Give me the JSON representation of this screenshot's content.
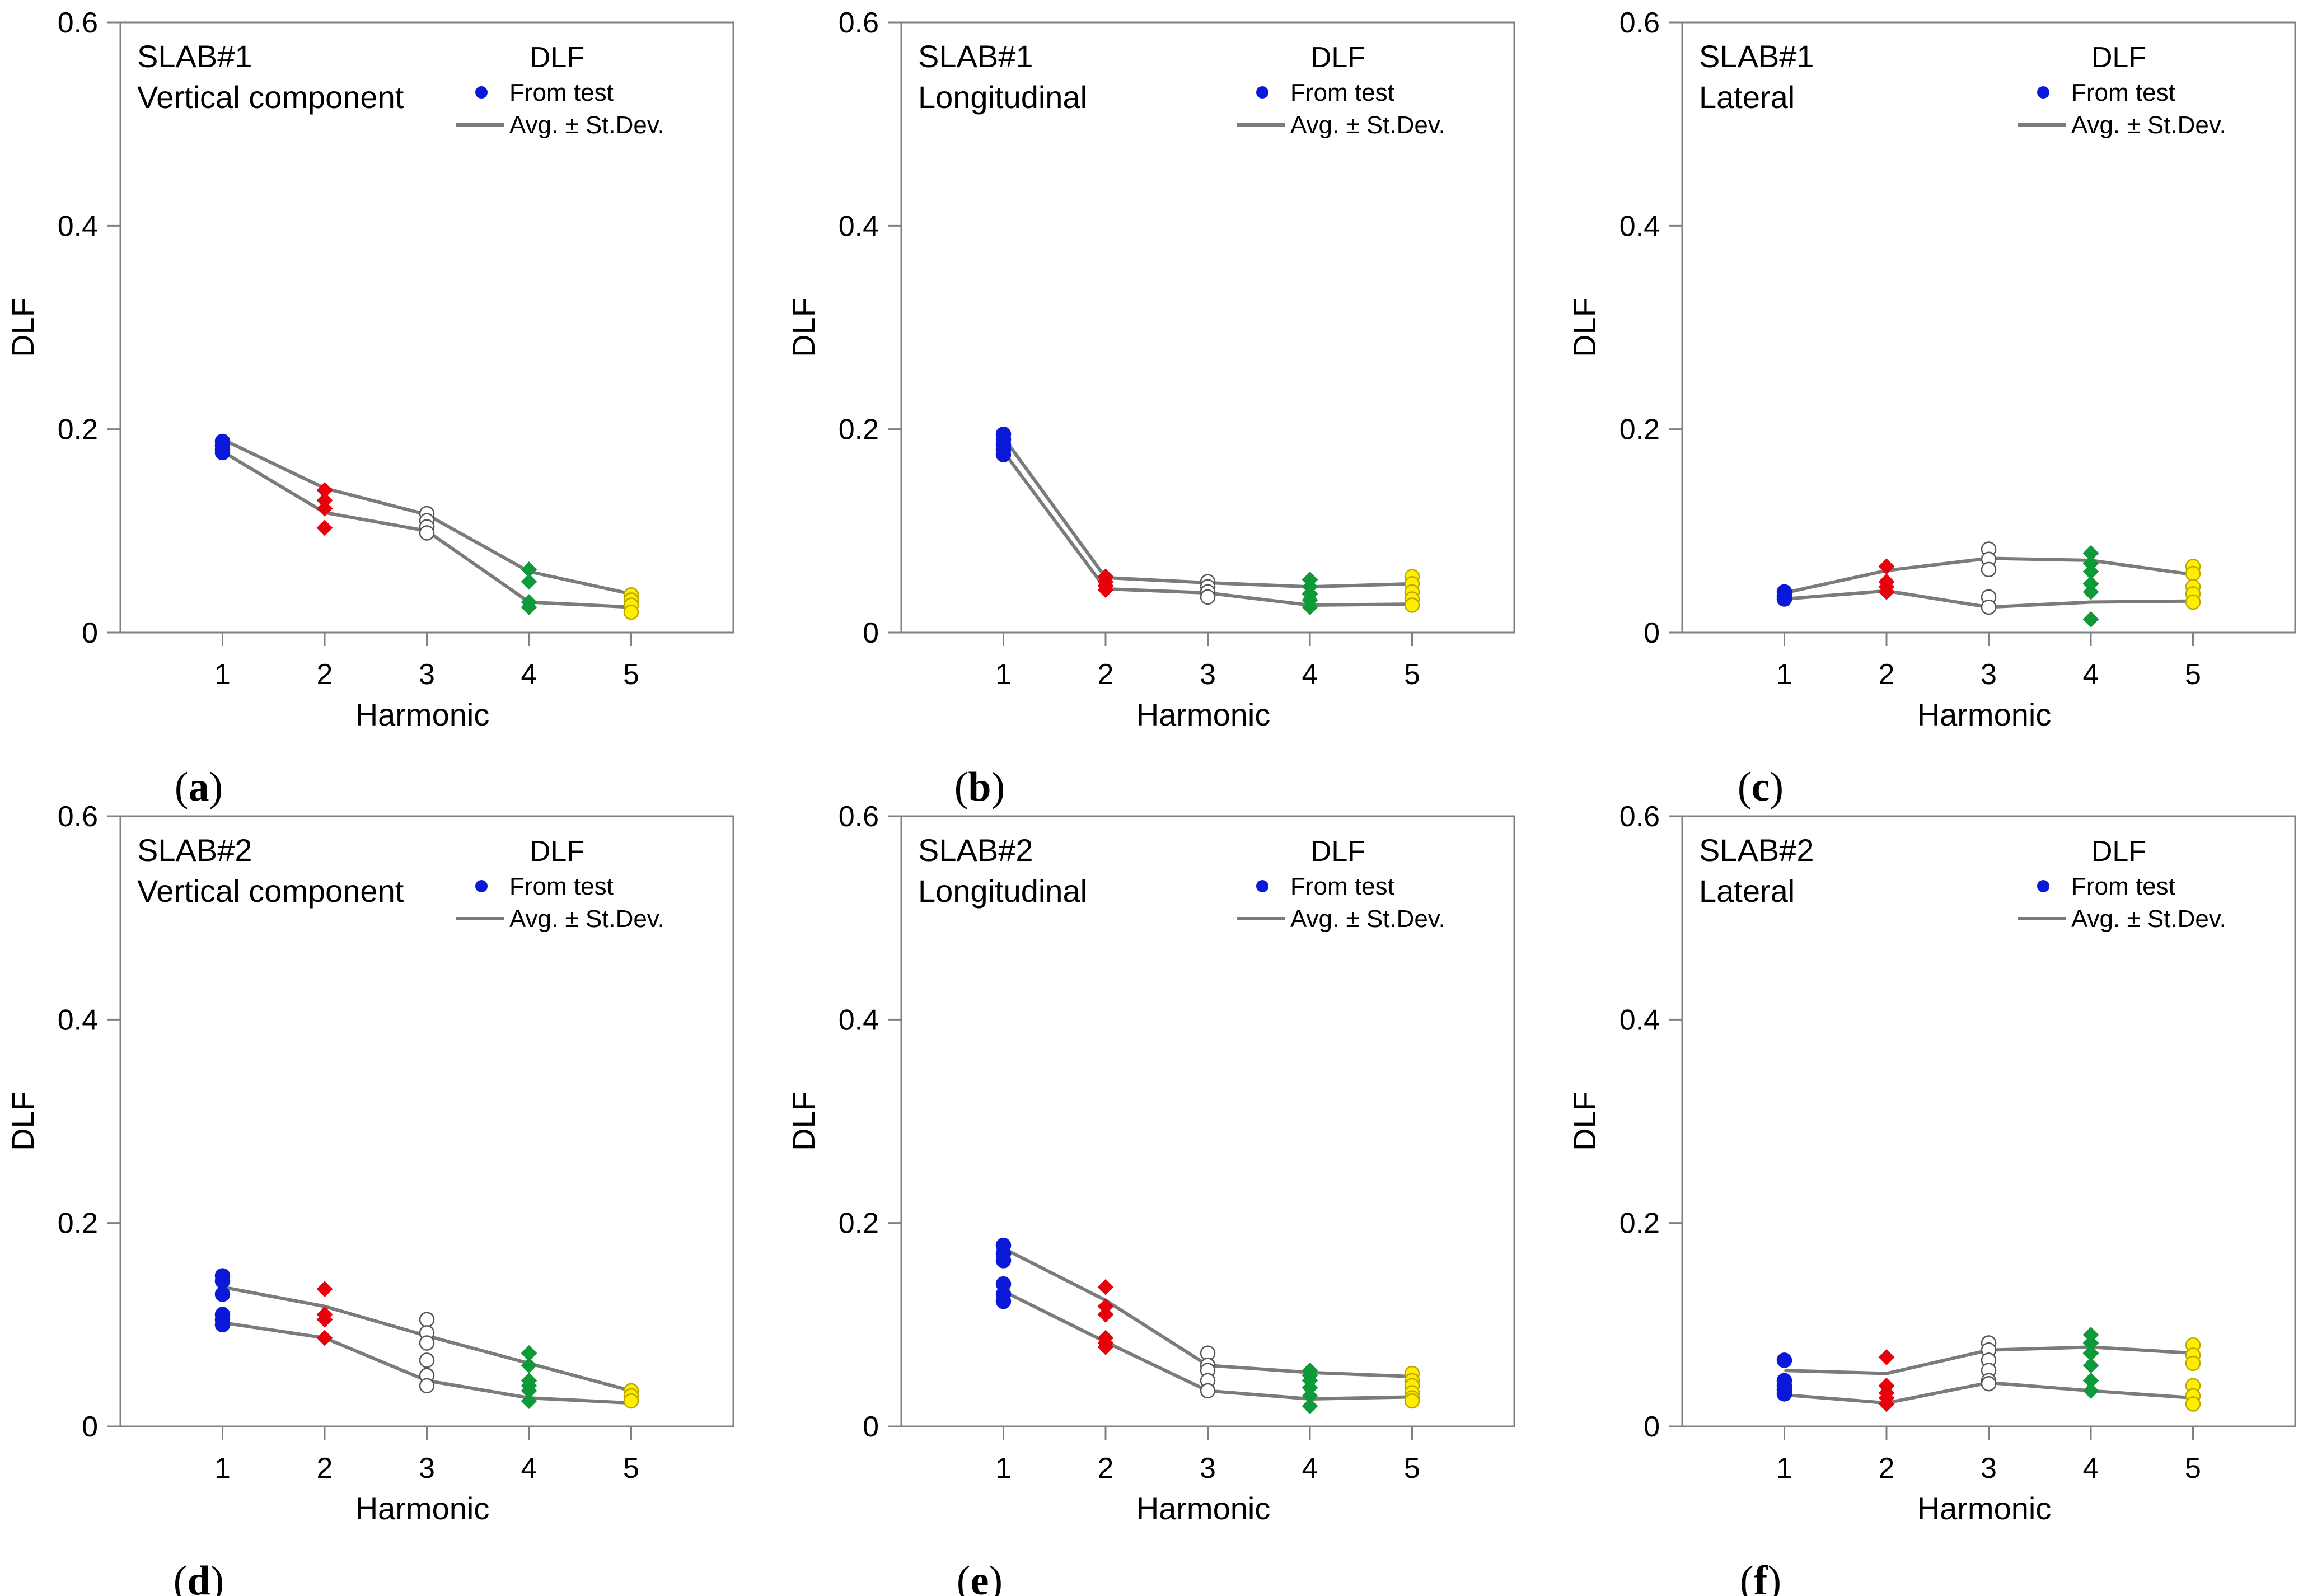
{
  "chart_data": [
    {
      "type": "scatter",
      "caption": "a",
      "title": "SLAB#1",
      "subtitle": "Vertical component",
      "legend_title": "DLF",
      "legend_points": "From test",
      "legend_line": "Avg. ± St.Dev.",
      "xlabel": "Harmonic",
      "ylabel": "DLF",
      "x_ticks": [
        "1",
        "2",
        "3",
        "4",
        "5"
      ],
      "y_ticks": [
        "0",
        "0.2",
        "0.4",
        "0.6"
      ],
      "xlim": [
        0,
        6
      ],
      "ylim": [
        0,
        0.6
      ],
      "upper": [
        0.19,
        0.142,
        0.116,
        0.06,
        0.038
      ],
      "lower": [
        0.178,
        0.118,
        0.1,
        0.03,
        0.025
      ],
      "points": [
        [
          0.188,
          0.184,
          0.18,
          0.177
        ],
        [
          0.14,
          0.13,
          0.122,
          0.103
        ],
        [
          0.117,
          0.11,
          0.104,
          0.098
        ],
        [
          0.062,
          0.05,
          0.03,
          0.025
        ],
        [
          0.037,
          0.032,
          0.027,
          0.02
        ]
      ]
    },
    {
      "type": "scatter",
      "caption": "b",
      "title": "SLAB#1",
      "subtitle": "Longitudinal",
      "legend_title": "DLF",
      "legend_points": "From test",
      "legend_line": "Avg. ± St.Dev.",
      "xlabel": "Harmonic",
      "ylabel": "DLF",
      "x_ticks": [
        "1",
        "2",
        "3",
        "4",
        "5"
      ],
      "y_ticks": [
        "0",
        "0.2",
        "0.4",
        "0.6"
      ],
      "xlim": [
        0,
        6
      ],
      "ylim": [
        0,
        0.6
      ],
      "upper": [
        0.192,
        0.054,
        0.049,
        0.045,
        0.048
      ],
      "lower": [
        0.178,
        0.043,
        0.039,
        0.027,
        0.028
      ],
      "points": [
        [
          0.195,
          0.19,
          0.185,
          0.18,
          0.175
        ],
        [
          0.055,
          0.05,
          0.046,
          0.042
        ],
        [
          0.05,
          0.045,
          0.04,
          0.035
        ],
        [
          0.052,
          0.045,
          0.038,
          0.032,
          0.025
        ],
        [
          0.055,
          0.048,
          0.04,
          0.033,
          0.027
        ]
      ]
    },
    {
      "type": "scatter",
      "caption": "c",
      "title": "SLAB#1",
      "subtitle": "Lateral",
      "legend_title": "DLF",
      "legend_points": "From test",
      "legend_line": "Avg. ± St.Dev.",
      "xlabel": "Harmonic",
      "ylabel": "DLF",
      "x_ticks": [
        "1",
        "2",
        "3",
        "4",
        "5"
      ],
      "y_ticks": [
        "0",
        "0.2",
        "0.4",
        "0.6"
      ],
      "xlim": [
        0,
        6
      ],
      "ylim": [
        0,
        0.6
      ],
      "upper": [
        0.039,
        0.061,
        0.073,
        0.071,
        0.057
      ],
      "lower": [
        0.033,
        0.041,
        0.025,
        0.03,
        0.031
      ],
      "points": [
        [
          0.04,
          0.036,
          0.033
        ],
        [
          0.065,
          0.05,
          0.045,
          0.04
        ],
        [
          0.082,
          0.072,
          0.062,
          0.035,
          0.025
        ],
        [
          0.078,
          0.068,
          0.06,
          0.048,
          0.04,
          0.013
        ],
        [
          0.065,
          0.058,
          0.045,
          0.038,
          0.03
        ]
      ]
    },
    {
      "type": "scatter",
      "caption": "d",
      "title": "SLAB#2",
      "subtitle": "Vertical component",
      "legend_title": "DLF",
      "legend_points": "From test",
      "legend_line": "Avg. ± St.Dev.",
      "xlabel": "Harmonic",
      "ylabel": "DLF",
      "x_ticks": [
        "1",
        "2",
        "3",
        "4",
        "5"
      ],
      "y_ticks": [
        "0",
        "0.2",
        "0.4",
        "0.6"
      ],
      "xlim": [
        0,
        6
      ],
      "ylim": [
        0,
        0.6
      ],
      "upper": [
        0.137,
        0.118,
        0.089,
        0.062,
        0.035
      ],
      "lower": [
        0.102,
        0.087,
        0.045,
        0.028,
        0.023
      ],
      "points": [
        [
          0.148,
          0.143,
          0.13,
          0.11,
          0.105,
          0.1
        ],
        [
          0.135,
          0.11,
          0.105,
          0.087
        ],
        [
          0.105,
          0.092,
          0.082,
          0.065,
          0.05,
          0.04
        ],
        [
          0.072,
          0.06,
          0.045,
          0.04,
          0.035,
          0.025
        ],
        [
          0.035,
          0.03,
          0.025
        ]
      ]
    },
    {
      "type": "scatter",
      "caption": "e",
      "title": "SLAB#2",
      "subtitle": "Longitudinal",
      "legend_title": "DLF",
      "legend_points": "From test",
      "legend_line": "Avg. ± St.Dev.",
      "xlabel": "Harmonic",
      "ylabel": "DLF",
      "x_ticks": [
        "1",
        "2",
        "3",
        "4",
        "5"
      ],
      "y_ticks": [
        "0",
        "0.2",
        "0.4",
        "0.6"
      ],
      "xlim": [
        0,
        6
      ],
      "ylim": [
        0,
        0.6
      ],
      "upper": [
        0.175,
        0.124,
        0.06,
        0.053,
        0.049
      ],
      "lower": [
        0.133,
        0.083,
        0.035,
        0.027,
        0.029
      ],
      "points": [
        [
          0.178,
          0.17,
          0.163,
          0.14,
          0.13,
          0.123
        ],
        [
          0.137,
          0.118,
          0.11,
          0.087,
          0.082,
          0.078
        ],
        [
          0.072,
          0.06,
          0.055,
          0.045,
          0.035
        ],
        [
          0.055,
          0.05,
          0.045,
          0.038,
          0.03,
          0.02
        ],
        [
          0.052,
          0.045,
          0.04,
          0.033,
          0.028,
          0.025
        ]
      ]
    },
    {
      "type": "scatter",
      "caption": "f",
      "title": "SLAB#2",
      "subtitle": "Lateral",
      "legend_title": "DLF",
      "legend_points": "From test",
      "legend_line": "Avg. ± St.Dev.",
      "xlabel": "Harmonic",
      "ylabel": "DLF",
      "x_ticks": [
        "1",
        "2",
        "3",
        "4",
        "5"
      ],
      "y_ticks": [
        "0",
        "0.2",
        "0.4",
        "0.6"
      ],
      "xlim": [
        0,
        6
      ],
      "ylim": [
        0,
        0.6
      ],
      "upper": [
        0.055,
        0.052,
        0.075,
        0.078,
        0.072
      ],
      "lower": [
        0.031,
        0.023,
        0.043,
        0.035,
        0.028
      ],
      "points": [
        [
          0.065,
          0.045,
          0.04,
          0.036,
          0.032
        ],
        [
          0.068,
          0.04,
          0.033,
          0.028,
          0.022
        ],
        [
          0.082,
          0.075,
          0.065,
          0.055,
          0.045,
          0.042
        ],
        [
          0.09,
          0.082,
          0.072,
          0.06,
          0.045,
          0.035
        ],
        [
          0.08,
          0.07,
          0.062,
          0.04,
          0.03,
          0.022
        ]
      ]
    }
  ],
  "series_colors": [
    "#0a18d8",
    "#e8000b",
    "#ffffff",
    "#0f9a3a",
    "#ffee00"
  ],
  "series_shapes": [
    "circle",
    "diamond",
    "circle",
    "diamond",
    "circle"
  ],
  "line_color": "#7b7b7b"
}
